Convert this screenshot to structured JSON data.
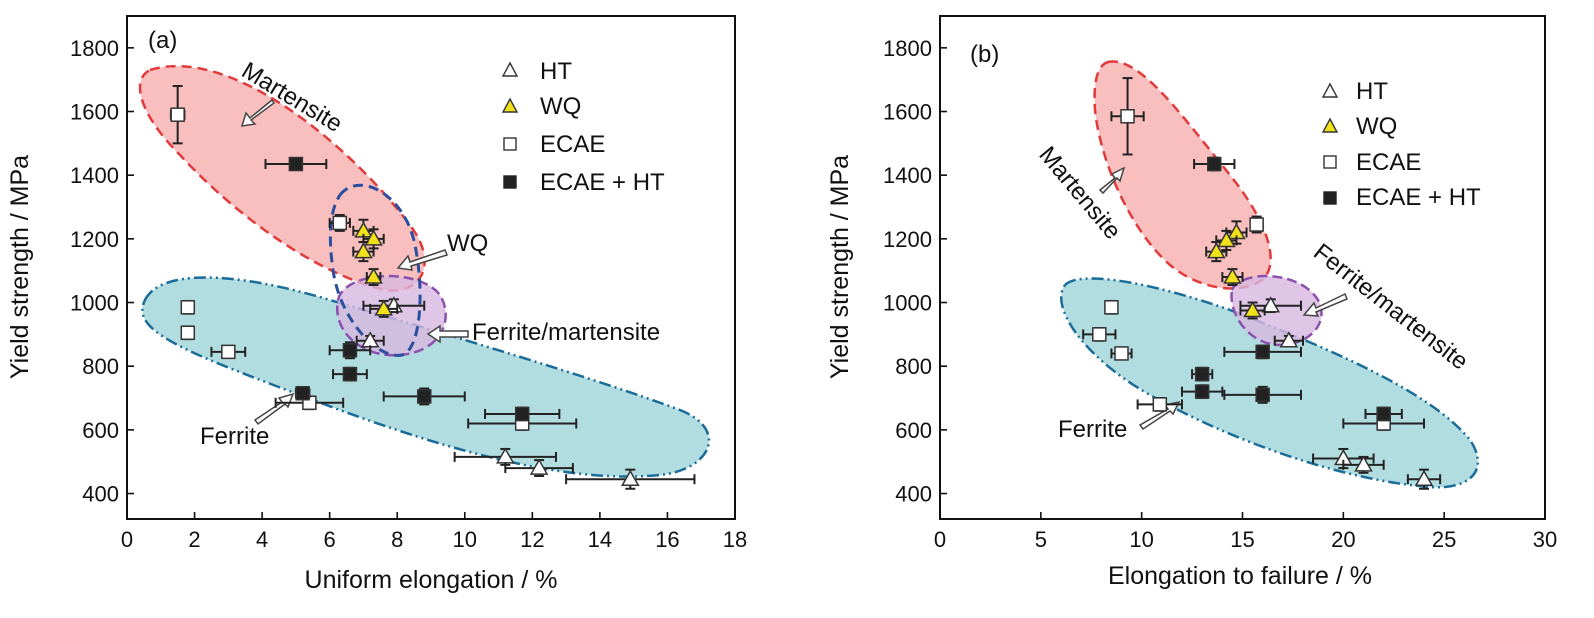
{
  "chart_data": [
    {
      "type": "scatter",
      "panel_label": "(a)",
      "xlabel": "Uniform elongation / %",
      "ylabel": "Yield strength / MPa",
      "xlim": [
        0,
        18
      ],
      "ylim": [
        320,
        1900
      ],
      "xticks": [
        0,
        2,
        4,
        6,
        8,
        10,
        12,
        14,
        16,
        18
      ],
      "yticks": [
        400,
        600,
        800,
        1000,
        1200,
        1400,
        1600,
        1800
      ],
      "legend_position": "top-right",
      "grid": false,
      "series": [
        {
          "name": "HT",
          "marker": "triangle",
          "fill": "#ffffff",
          "points": [
            {
              "x": 7.2,
              "y": 880,
              "xerr": 0.4,
              "yerr": 15
            },
            {
              "x": 7.9,
              "y": 990,
              "xerr": 0.9,
              "yerr": 20
            },
            {
              "x": 11.2,
              "y": 515,
              "xerr": 1.5,
              "yerr": 25
            },
            {
              "x": 12.2,
              "y": 480,
              "xerr": 1.0,
              "yerr": 25
            },
            {
              "x": 14.9,
              "y": 445,
              "xerr": 1.9,
              "yerr": 30
            }
          ]
        },
        {
          "name": "WQ",
          "marker": "triangle",
          "fill": "#f2e01a",
          "points": [
            {
              "x": 7.0,
              "y": 1225,
              "xerr": 0.3,
              "yerr": 35
            },
            {
              "x": 7.3,
              "y": 1200,
              "xerr": 0.3,
              "yerr": 30
            },
            {
              "x": 7.0,
              "y": 1160,
              "xerr": 0.3,
              "yerr": 30
            },
            {
              "x": 7.3,
              "y": 1080,
              "xerr": 0.2,
              "yerr": 25
            },
            {
              "x": 7.6,
              "y": 980,
              "xerr": 0.4,
              "yerr": 25
            }
          ]
        },
        {
          "name": "ECAE",
          "marker": "square",
          "fill": "#ffffff",
          "points": [
            {
              "x": 1.5,
              "y": 1590,
              "xerr": 0.2,
              "yerr": 90
            },
            {
              "x": 6.3,
              "y": 1250,
              "xerr": 0.3,
              "yerr": 25
            },
            {
              "x": 1.8,
              "y": 985,
              "xerr": 0.1,
              "yerr": 20
            },
            {
              "x": 1.8,
              "y": 905,
              "xerr": 0.1,
              "yerr": 20
            },
            {
              "x": 3.0,
              "y": 845,
              "xerr": 0.5,
              "yerr": 15
            },
            {
              "x": 5.4,
              "y": 685,
              "xerr": 1.0,
              "yerr": 20
            },
            {
              "x": 11.7,
              "y": 620,
              "xerr": 1.6,
              "yerr": 20
            }
          ]
        },
        {
          "name": "ECAE + HT",
          "marker": "square",
          "fill": "#222222",
          "points": [
            {
              "x": 5.0,
              "y": 1435,
              "xerr": 0.9,
              "yerr": 15
            },
            {
              "x": 6.6,
              "y": 850,
              "xerr": 0.6,
              "yerr": 25
            },
            {
              "x": 6.6,
              "y": 775,
              "xerr": 0.5,
              "yerr": 20
            },
            {
              "x": 5.2,
              "y": 715,
              "xerr": 0.2,
              "yerr": 15
            },
            {
              "x": 8.8,
              "y": 705,
              "xerr": 1.2,
              "yerr": 25
            },
            {
              "x": 11.7,
              "y": 650,
              "xerr": 1.1,
              "yerr": 20
            }
          ]
        }
      ],
      "regions": [
        {
          "name": "Martensite",
          "color": "#f5a9a8",
          "stroke": "#e23a3a"
        },
        {
          "name": "WQ",
          "color": "none",
          "stroke": "#2a4f9e"
        },
        {
          "name": "Ferrite/martensite",
          "color": "#d8b8e0",
          "stroke": "#8a52ad"
        },
        {
          "name": "Ferrite",
          "color": "#9fd4d8",
          "stroke": "#1a6c99"
        }
      ],
      "annotations": [
        "Martensite",
        "WQ",
        "Ferrite/martensite",
        "Ferrite"
      ]
    },
    {
      "type": "scatter",
      "panel_label": "(b)",
      "xlabel": "Elongation to failure / %",
      "ylabel": "Yield strength / MPa",
      "xlim": [
        0,
        30
      ],
      "ylim": [
        320,
        1900
      ],
      "xticks": [
        0,
        5,
        10,
        15,
        20,
        25,
        30
      ],
      "yticks": [
        400,
        600,
        800,
        1000,
        1200,
        1400,
        1600,
        1800
      ],
      "legend_position": "top-right",
      "grid": false,
      "series": [
        {
          "name": "HT",
          "marker": "triangle",
          "fill": "#ffffff",
          "points": [
            {
              "x": 16.4,
              "y": 990,
              "xerr": 1.5,
              "yerr": 20
            },
            {
              "x": 17.3,
              "y": 880,
              "xerr": 0.7,
              "yerr": 15
            },
            {
              "x": 20.0,
              "y": 510,
              "xerr": 1.5,
              "yerr": 30
            },
            {
              "x": 21.0,
              "y": 490,
              "xerr": 1.0,
              "yerr": 25
            },
            {
              "x": 24.0,
              "y": 445,
              "xerr": 0.8,
              "yerr": 30
            }
          ]
        },
        {
          "name": "WQ",
          "marker": "triangle",
          "fill": "#f2e01a",
          "points": [
            {
              "x": 14.7,
              "y": 1220,
              "xerr": 0.5,
              "yerr": 35
            },
            {
              "x": 14.2,
              "y": 1195,
              "xerr": 0.5,
              "yerr": 30
            },
            {
              "x": 13.7,
              "y": 1160,
              "xerr": 0.5,
              "yerr": 30
            },
            {
              "x": 14.5,
              "y": 1080,
              "xerr": 0.5,
              "yerr": 25
            },
            {
              "x": 15.5,
              "y": 975,
              "xerr": 0.6,
              "yerr": 25
            }
          ]
        },
        {
          "name": "ECAE",
          "marker": "square",
          "fill": "#ffffff",
          "points": [
            {
              "x": 9.3,
              "y": 1585,
              "xerr": 0.8,
              "yerr": 120
            },
            {
              "x": 15.7,
              "y": 1245,
              "xerr": 0.3,
              "yerr": 25
            },
            {
              "x": 8.5,
              "y": 985,
              "xerr": 0.3,
              "yerr": 20
            },
            {
              "x": 7.9,
              "y": 900,
              "xerr": 0.8,
              "yerr": 20
            },
            {
              "x": 9.0,
              "y": 840,
              "xerr": 0.5,
              "yerr": 15
            },
            {
              "x": 10.9,
              "y": 680,
              "xerr": 1.1,
              "yerr": 20
            },
            {
              "x": 22.0,
              "y": 620,
              "xerr": 2.0,
              "yerr": 20
            }
          ]
        },
        {
          "name": "ECAE + HT",
          "marker": "square",
          "fill": "#222222",
          "points": [
            {
              "x": 13.6,
              "y": 1435,
              "xerr": 1.0,
              "yerr": 20
            },
            {
              "x": 16.0,
              "y": 845,
              "xerr": 1.9,
              "yerr": 20
            },
            {
              "x": 13.0,
              "y": 775,
              "xerr": 0.5,
              "yerr": 20
            },
            {
              "x": 13.0,
              "y": 720,
              "xerr": 1.0,
              "yerr": 20
            },
            {
              "x": 16.0,
              "y": 710,
              "xerr": 1.9,
              "yerr": 25
            },
            {
              "x": 22.0,
              "y": 650,
              "xerr": 0.9,
              "yerr": 20
            }
          ]
        }
      ],
      "regions": [
        {
          "name": "Martensite",
          "color": "#f5a9a8",
          "stroke": "#e23a3a"
        },
        {
          "name": "Ferrite/martensite",
          "color": "#d8b8e0",
          "stroke": "#8a52ad"
        },
        {
          "name": "Ferrite",
          "color": "#9fd4d8",
          "stroke": "#1a6c99"
        }
      ],
      "annotations": [
        "Martensite",
        "Ferrite/martensite",
        "Ferrite"
      ]
    }
  ]
}
